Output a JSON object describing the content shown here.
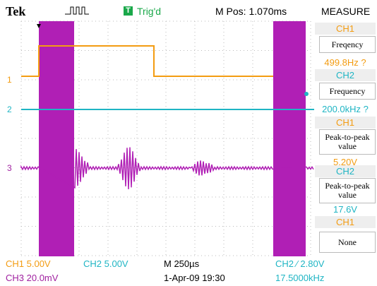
{
  "header": {
    "brand": "Tek",
    "trigger_icon": "T",
    "trigger_status": "Trig'd",
    "position": "M Pos: 1.070ms",
    "menu_title": "MEASURE"
  },
  "channel_markers": [
    "1",
    "2",
    "3"
  ],
  "measurements": [
    {
      "channel": "CH1",
      "type": "Freqency",
      "value": "499.8Hz ?"
    },
    {
      "channel": "CH2",
      "type": "Frequency",
      "value": "200.0kHz ?"
    },
    {
      "channel": "CH1",
      "type": "Peak-to-peak value",
      "value": "5.20V"
    },
    {
      "channel": "CH2",
      "type": "Peak-to-peak value",
      "value": "17.6V"
    },
    {
      "channel": "CH1",
      "type": "None"
    }
  ],
  "footer": {
    "ch1_scale": "CH1 5.00V",
    "ch2_scale": "CH2 5.00V",
    "timebase": "M 250µs",
    "trigger": "CH2 ∕ 2.80V",
    "ch3_scale": "CH3 20.0mV",
    "date": "1-Apr-09 19:30",
    "frequency": "17.5000kHz"
  }
}
